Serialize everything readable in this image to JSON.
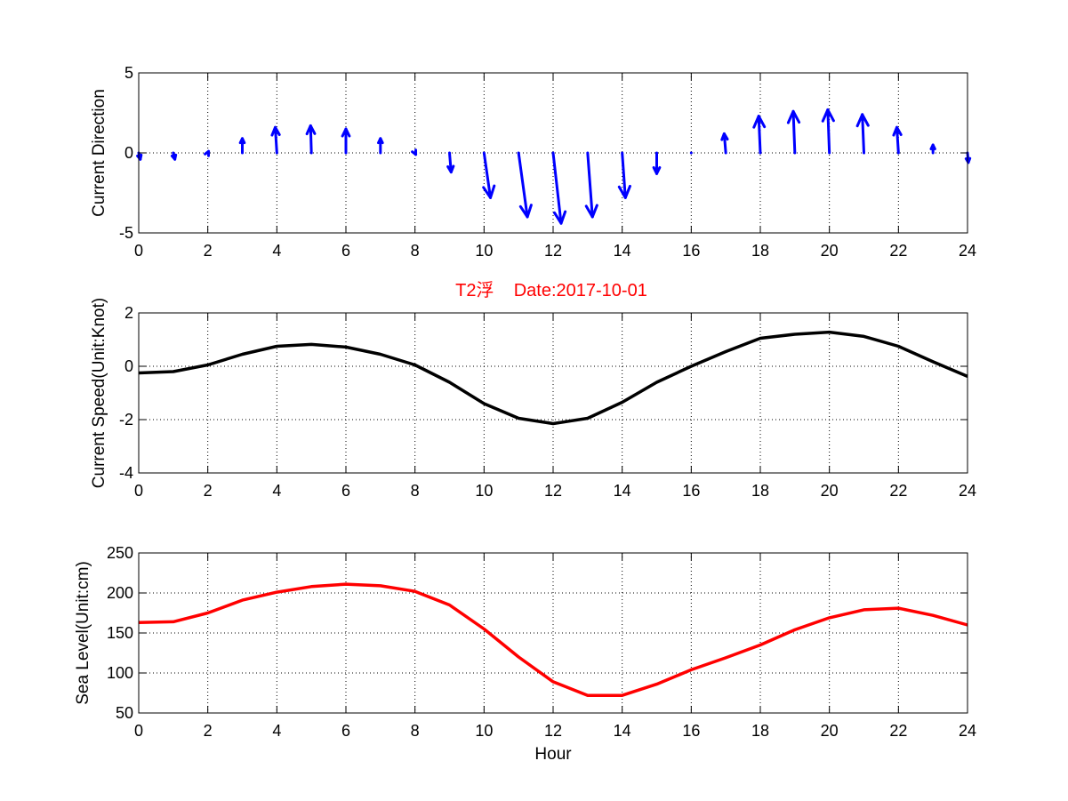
{
  "figure_title": "T2浮    Date:2017-10-01",
  "colors": {
    "quiver": "#0000ff",
    "speed": "#000000",
    "level": "#ff0000",
    "title": "#ff0000"
  },
  "chart_data": [
    {
      "type": "quiver",
      "title": "",
      "xlabel": "",
      "ylabel": "Current Direction",
      "xlim": [
        0,
        24
      ],
      "ylim": [
        -5,
        5
      ],
      "xticks": [
        "0",
        "2",
        "4",
        "6",
        "8",
        "10",
        "12",
        "14",
        "16",
        "18",
        "20",
        "22",
        "24"
      ],
      "yticks": [
        "-5",
        "0",
        "5"
      ],
      "grid": true,
      "x": [
        0,
        1,
        2,
        3,
        4,
        5,
        6,
        7,
        8,
        9,
        10,
        11,
        12,
        13,
        14,
        15,
        16,
        17,
        18,
        19,
        20,
        21,
        22,
        23,
        24
      ],
      "u": [
        0.1,
        0.1,
        0.05,
        0.0,
        -0.1,
        -0.05,
        0.0,
        0.0,
        0.05,
        0.1,
        0.4,
        0.55,
        0.5,
        0.3,
        0.2,
        0.0,
        0.0,
        -0.1,
        -0.1,
        -0.1,
        -0.1,
        -0.1,
        -0.1,
        0.0,
        0.05
      ],
      "v": [
        -0.4,
        -0.4,
        0.1,
        0.9,
        1.6,
        1.7,
        1.5,
        0.9,
        -0.1,
        -1.2,
        -2.8,
        -4.0,
        -4.4,
        -4.0,
        -2.8,
        -1.3,
        0.0,
        1.2,
        2.3,
        2.6,
        2.7,
        2.4,
        1.6,
        0.5,
        -0.6
      ]
    },
    {
      "type": "line",
      "title": "",
      "xlabel": "",
      "ylabel": "Current Speed(Unit:Knot)",
      "xlim": [
        0,
        24
      ],
      "ylim": [
        -4,
        2
      ],
      "xticks": [
        "0",
        "2",
        "4",
        "6",
        "8",
        "10",
        "12",
        "14",
        "16",
        "18",
        "20",
        "22",
        "24"
      ],
      "yticks": [
        "-4",
        "-2",
        "0",
        "2"
      ],
      "grid": true,
      "x": [
        0,
        1,
        2,
        3,
        4,
        5,
        6,
        7,
        8,
        9,
        10,
        11,
        12,
        13,
        14,
        15,
        16,
        17,
        18,
        19,
        20,
        21,
        22,
        23,
        24
      ],
      "series": [
        {
          "values": [
            -0.25,
            -0.2,
            0.05,
            0.45,
            0.75,
            0.82,
            0.72,
            0.45,
            0.05,
            -0.6,
            -1.4,
            -1.95,
            -2.15,
            -1.95,
            -1.35,
            -0.6,
            0.0,
            0.55,
            1.05,
            1.2,
            1.28,
            1.12,
            0.75,
            0.17,
            -0.38
          ]
        }
      ]
    },
    {
      "type": "line",
      "title": "",
      "xlabel": "Hour",
      "ylabel": "Sea Level(Unit:cm)",
      "xlim": [
        0,
        24
      ],
      "ylim": [
        50,
        250
      ],
      "xticks": [
        "0",
        "2",
        "4",
        "6",
        "8",
        "10",
        "12",
        "14",
        "16",
        "18",
        "20",
        "22",
        "24"
      ],
      "yticks": [
        "50",
        "100",
        "150",
        "200",
        "250"
      ],
      "grid": true,
      "x": [
        0,
        1,
        2,
        3,
        4,
        5,
        6,
        7,
        8,
        9,
        10,
        11,
        12,
        13,
        14,
        15,
        16,
        17,
        18,
        19,
        20,
        21,
        22,
        23,
        24
      ],
      "series": [
        {
          "values": [
            163,
            164,
            175,
            191,
            201,
            208,
            211,
            209,
            202,
            185,
            155,
            120,
            89,
            72,
            72,
            86,
            104,
            119,
            135,
            154,
            169,
            179,
            181,
            172,
            160
          ]
        }
      ]
    }
  ]
}
